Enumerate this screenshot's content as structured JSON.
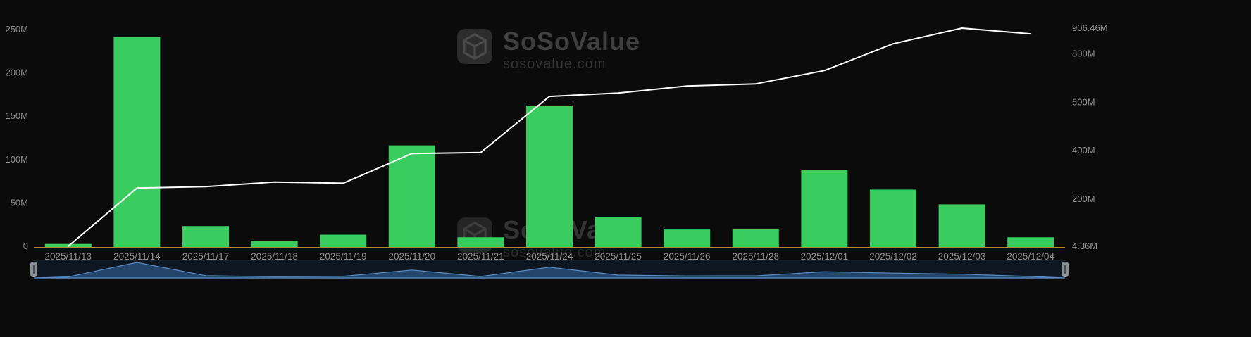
{
  "watermark": {
    "brand": "SoSoValue",
    "domain": "sosovalue.com"
  },
  "chart_data": {
    "type": "bar",
    "subtype": "bar-with-cumulative-line",
    "title": "",
    "xlabel": "",
    "ylabel": "",
    "legend": "none",
    "grid": "off",
    "categories": [
      "2025/11/13",
      "2025/11/14",
      "2025/11/17",
      "2025/11/18",
      "2025/11/19",
      "2025/11/20",
      "2025/11/21",
      "2025/11/24",
      "2025/11/25",
      "2025/11/26",
      "2025/11/28",
      "2025/12/01",
      "2025/12/02",
      "2025/12/03",
      "2025/12/04"
    ],
    "series": [
      {
        "name": "daily-flow-bars",
        "type": "bar",
        "axis": "left",
        "unit": "M",
        "color": "#38cd5e",
        "values": [
          4.36,
          243,
          25,
          8,
          15,
          118,
          12,
          164,
          35,
          21,
          22,
          90,
          67,
          50,
          12
        ]
      },
      {
        "name": "cumulative-flow-line",
        "type": "line",
        "axis": "right",
        "unit": "M",
        "color": "#ffffff",
        "values": [
          4.36,
          245,
          251,
          270,
          265,
          388,
          392,
          624,
          638,
          667,
          676,
          731,
          842,
          906.46,
          883
        ]
      }
    ],
    "left_axis": {
      "min": 0,
      "max": 250,
      "ticks": [
        {
          "label": "0",
          "value": 0
        },
        {
          "label": "50M",
          "value": 50
        },
        {
          "label": "100M",
          "value": 100
        },
        {
          "label": "150M",
          "value": 150
        },
        {
          "label": "200M",
          "value": 200
        },
        {
          "label": "250M",
          "value": 250
        }
      ]
    },
    "right_axis": {
      "min": 4.36,
      "max": 906.46,
      "ticks": [
        {
          "label": "4.36M",
          "value": 4.36
        },
        {
          "label": "200M",
          "value": 200
        },
        {
          "label": "400M",
          "value": 400
        },
        {
          "label": "600M",
          "value": 600
        },
        {
          "label": "800M",
          "value": 800
        },
        {
          "label": "906.46M",
          "value": 906.46
        }
      ]
    },
    "colors": {
      "bar": "#38cd5e",
      "line": "#ffffff",
      "axis_line": "#b3882a",
      "label": "#8f8f8f",
      "background": "#0b0b0b",
      "nav_bg": "#0e1622",
      "nav_fill": "#24466b",
      "nav_stroke": "#5b8cc4",
      "handle": "#8b9096"
    }
  }
}
